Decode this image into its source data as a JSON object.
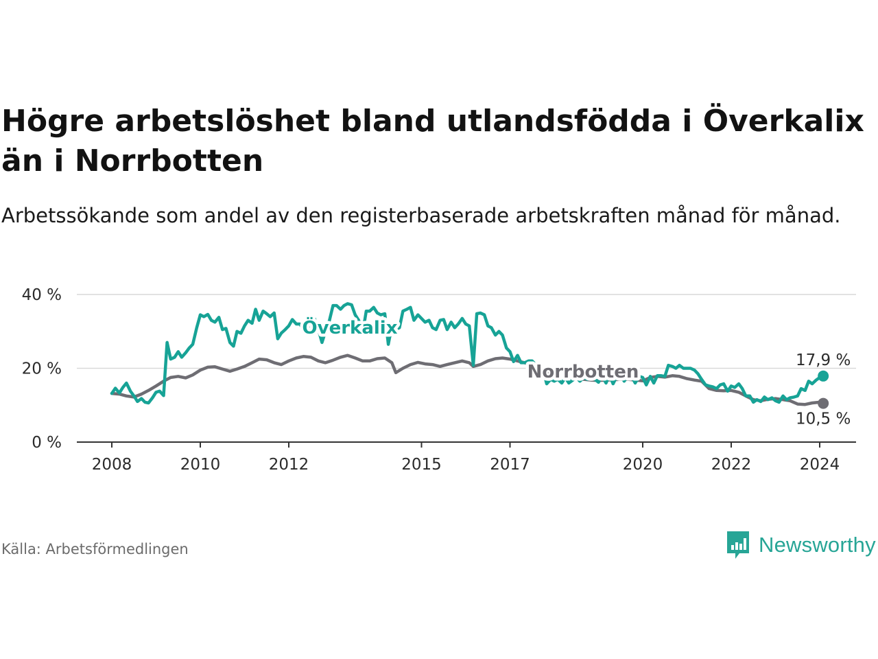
{
  "title": "Högre arbetslöshet bland utlandsfödda i Överkalix än i Norrbotten",
  "subtitle": "Arbetssökande som andel av den registerbaserade arbetskraften månad för månad.",
  "source": "Källa: Arbetsförmedlingen",
  "brand": "Newsworthy",
  "colors": {
    "overkalix": "#17a396",
    "norrbotten": "#6e6d73",
    "grid": "#d9d9d9",
    "axis": "#333333",
    "brand": "#27a596"
  },
  "chart_data": {
    "type": "line",
    "title": "Högre arbetslöshet bland utlandsfödda i Överkalix än i Norrbotten",
    "xlabel": "",
    "ylabel": "",
    "xlim": [
      2008,
      2024.2
    ],
    "ylim": [
      0,
      40
    ],
    "y_ticks": [
      0,
      20,
      40
    ],
    "y_tick_labels": [
      "0 %",
      "20 %",
      "40 %"
    ],
    "x_ticks": [
      2008,
      2010,
      2012,
      2015,
      2017,
      2020,
      2022,
      2024
    ],
    "x_tick_labels": [
      "2008",
      "2010",
      "2012",
      "2015",
      "2017",
      "2020",
      "2022",
      "2024"
    ],
    "series": [
      {
        "name": "Överkalix",
        "label": "Överkalix",
        "end_label": "17,9 %",
        "points": [
          [
            2008.0,
            13.2
          ],
          [
            2008.08,
            14.6
          ],
          [
            2008.17,
            13.3
          ],
          [
            2008.25,
            14.8
          ],
          [
            2008.33,
            16.0
          ],
          [
            2008.42,
            13.8
          ],
          [
            2008.5,
            12.5
          ],
          [
            2008.58,
            11.0
          ],
          [
            2008.67,
            11.8
          ],
          [
            2008.75,
            10.8
          ],
          [
            2008.83,
            10.6
          ],
          [
            2008.92,
            12.0
          ],
          [
            2009.0,
            13.5
          ],
          [
            2009.08,
            13.8
          ],
          [
            2009.17,
            12.6
          ],
          [
            2009.25,
            27.0
          ],
          [
            2009.33,
            22.5
          ],
          [
            2009.42,
            23.0
          ],
          [
            2009.5,
            24.5
          ],
          [
            2009.58,
            23.0
          ],
          [
            2009.67,
            24.2
          ],
          [
            2009.75,
            25.5
          ],
          [
            2009.83,
            26.5
          ],
          [
            2009.92,
            31.0
          ],
          [
            2010.0,
            34.5
          ],
          [
            2010.08,
            34.0
          ],
          [
            2010.17,
            34.6
          ],
          [
            2010.25,
            33.0
          ],
          [
            2010.33,
            32.5
          ],
          [
            2010.42,
            33.8
          ],
          [
            2010.5,
            30.5
          ],
          [
            2010.58,
            30.8
          ],
          [
            2010.67,
            27.0
          ],
          [
            2010.75,
            26.0
          ],
          [
            2010.83,
            30.0
          ],
          [
            2010.92,
            29.5
          ],
          [
            2011.0,
            31.5
          ],
          [
            2011.08,
            33.0
          ],
          [
            2011.17,
            32.2
          ],
          [
            2011.25,
            36.0
          ],
          [
            2011.33,
            33.0
          ],
          [
            2011.42,
            35.5
          ],
          [
            2011.5,
            34.8
          ],
          [
            2011.58,
            34.0
          ],
          [
            2011.67,
            35.0
          ],
          [
            2011.75,
            28.0
          ],
          [
            2011.83,
            29.5
          ],
          [
            2011.92,
            30.5
          ],
          [
            2012.0,
            31.5
          ],
          [
            2012.08,
            33.2
          ],
          [
            2012.17,
            32.0
          ],
          [
            2012.25,
            32.0
          ],
          [
            2012.33,
            30.5
          ],
          [
            2012.42,
            30.8
          ],
          [
            2012.5,
            31.8
          ],
          [
            2012.58,
            33.5
          ],
          [
            2012.67,
            30.5
          ],
          [
            2012.75,
            27.0
          ],
          [
            2012.83,
            30.0
          ],
          [
            2012.92,
            33.0
          ],
          [
            2013.0,
            37.0
          ],
          [
            2013.08,
            37.0
          ],
          [
            2013.17,
            36.0
          ],
          [
            2013.25,
            37.0
          ],
          [
            2013.33,
            37.5
          ],
          [
            2013.42,
            37.2
          ],
          [
            2013.5,
            34.5
          ],
          [
            2013.58,
            33.0
          ],
          [
            2013.67,
            29.5
          ],
          [
            2013.75,
            35.5
          ],
          [
            2013.83,
            35.5
          ],
          [
            2013.92,
            36.5
          ],
          [
            2014.0,
            35.0
          ],
          [
            2014.08,
            34.5
          ],
          [
            2014.17,
            34.8
          ],
          [
            2014.25,
            26.5
          ],
          [
            2014.33,
            31.5
          ],
          [
            2014.42,
            30.5
          ],
          [
            2014.5,
            31.0
          ],
          [
            2014.58,
            35.5
          ],
          [
            2014.67,
            36.0
          ],
          [
            2014.75,
            36.5
          ],
          [
            2014.83,
            33.0
          ],
          [
            2014.92,
            34.5
          ],
          [
            2015.0,
            33.5
          ],
          [
            2015.08,
            32.5
          ],
          [
            2015.17,
            33.0
          ],
          [
            2015.25,
            31.0
          ],
          [
            2015.33,
            30.5
          ],
          [
            2015.42,
            33.0
          ],
          [
            2015.5,
            33.2
          ],
          [
            2015.58,
            30.5
          ],
          [
            2015.67,
            32.5
          ],
          [
            2015.75,
            31.0
          ],
          [
            2015.83,
            32.0
          ],
          [
            2015.92,
            33.5
          ],
          [
            2016.0,
            32.0
          ],
          [
            2016.08,
            31.5
          ],
          [
            2016.17,
            20.8
          ],
          [
            2016.25,
            34.8
          ],
          [
            2016.33,
            35.0
          ],
          [
            2016.42,
            34.5
          ],
          [
            2016.5,
            31.5
          ],
          [
            2016.58,
            31.0
          ],
          [
            2016.67,
            29.0
          ],
          [
            2016.75,
            30.0
          ],
          [
            2016.83,
            29.0
          ],
          [
            2016.92,
            25.5
          ],
          [
            2017.0,
            24.5
          ],
          [
            2017.08,
            21.8
          ],
          [
            2017.17,
            23.5
          ],
          [
            2017.25,
            21.5
          ],
          [
            2017.33,
            21.5
          ],
          [
            2017.42,
            22.0
          ],
          [
            2017.5,
            22.0
          ],
          [
            2017.58,
            21.0
          ],
          [
            2017.67,
            20.5
          ],
          [
            2017.75,
            19.5
          ],
          [
            2017.83,
            15.8
          ],
          [
            2017.92,
            17.0
          ],
          [
            2018.0,
            16.5
          ],
          [
            2018.08,
            17.0
          ],
          [
            2018.17,
            16.0
          ],
          [
            2018.25,
            17.5
          ],
          [
            2018.33,
            16.0
          ],
          [
            2018.42,
            16.8
          ],
          [
            2018.5,
            17.5
          ],
          [
            2018.58,
            16.5
          ],
          [
            2018.67,
            17.5
          ],
          [
            2018.75,
            17.0
          ],
          [
            2018.83,
            18.0
          ],
          [
            2018.92,
            17.0
          ],
          [
            2019.0,
            16.2
          ],
          [
            2019.08,
            18.0
          ],
          [
            2019.17,
            16.0
          ],
          [
            2019.25,
            18.2
          ],
          [
            2019.33,
            15.8
          ],
          [
            2019.42,
            18.0
          ],
          [
            2019.5,
            18.2
          ],
          [
            2019.58,
            16.5
          ],
          [
            2019.67,
            18.0
          ],
          [
            2019.75,
            17.8
          ],
          [
            2019.83,
            16.0
          ],
          [
            2019.92,
            17.8
          ],
          [
            2020.0,
            17.5
          ],
          [
            2020.08,
            15.5
          ],
          [
            2020.17,
            17.8
          ],
          [
            2020.25,
            16.0
          ],
          [
            2020.33,
            18.0
          ],
          [
            2020.42,
            18.0
          ],
          [
            2020.5,
            17.8
          ],
          [
            2020.58,
            20.8
          ],
          [
            2020.67,
            20.5
          ],
          [
            2020.75,
            20.0
          ],
          [
            2020.83,
            20.8
          ],
          [
            2020.92,
            20.0
          ],
          [
            2021.0,
            20.0
          ],
          [
            2021.08,
            20.0
          ],
          [
            2021.17,
            19.5
          ],
          [
            2021.25,
            18.5
          ],
          [
            2021.33,
            17.0
          ],
          [
            2021.42,
            15.5
          ],
          [
            2021.5,
            15.2
          ],
          [
            2021.58,
            15.0
          ],
          [
            2021.67,
            14.5
          ],
          [
            2021.75,
            15.5
          ],
          [
            2021.83,
            15.8
          ],
          [
            2021.92,
            13.8
          ],
          [
            2022.0,
            15.2
          ],
          [
            2022.08,
            14.8
          ],
          [
            2022.17,
            15.8
          ],
          [
            2022.25,
            14.5
          ],
          [
            2022.33,
            12.5
          ],
          [
            2022.42,
            12.5
          ],
          [
            2022.5,
            10.8
          ],
          [
            2022.58,
            11.5
          ],
          [
            2022.67,
            11.0
          ],
          [
            2022.75,
            12.2
          ],
          [
            2022.83,
            11.5
          ],
          [
            2022.92,
            12.0
          ],
          [
            2023.0,
            11.2
          ],
          [
            2023.08,
            10.8
          ],
          [
            2023.17,
            12.5
          ],
          [
            2023.25,
            11.5
          ],
          [
            2023.33,
            12.0
          ],
          [
            2023.42,
            12.2
          ],
          [
            2023.5,
            12.5
          ],
          [
            2023.58,
            14.5
          ],
          [
            2023.67,
            14.0
          ],
          [
            2023.75,
            16.5
          ],
          [
            2023.83,
            15.8
          ],
          [
            2023.92,
            16.8
          ],
          [
            2024.0,
            17.5
          ],
          [
            2024.08,
            17.9
          ]
        ]
      },
      {
        "name": "Norrbotten",
        "label": "Norrbotten",
        "end_label": "10,5 %",
        "points": [
          [
            2008.0,
            13.2
          ],
          [
            2008.17,
            13.0
          ],
          [
            2008.33,
            12.5
          ],
          [
            2008.5,
            12.2
          ],
          [
            2008.67,
            13.0
          ],
          [
            2008.83,
            14.0
          ],
          [
            2009.0,
            15.2
          ],
          [
            2009.17,
            16.5
          ],
          [
            2009.33,
            17.5
          ],
          [
            2009.5,
            17.8
          ],
          [
            2009.67,
            17.4
          ],
          [
            2009.83,
            18.2
          ],
          [
            2010.0,
            19.5
          ],
          [
            2010.17,
            20.3
          ],
          [
            2010.33,
            20.4
          ],
          [
            2010.5,
            19.8
          ],
          [
            2010.67,
            19.2
          ],
          [
            2010.83,
            19.8
          ],
          [
            2011.0,
            20.5
          ],
          [
            2011.17,
            21.5
          ],
          [
            2011.33,
            22.5
          ],
          [
            2011.5,
            22.3
          ],
          [
            2011.67,
            21.5
          ],
          [
            2011.83,
            21.0
          ],
          [
            2012.0,
            22.0
          ],
          [
            2012.17,
            22.8
          ],
          [
            2012.33,
            23.2
          ],
          [
            2012.5,
            23.0
          ],
          [
            2012.67,
            22.0
          ],
          [
            2012.83,
            21.5
          ],
          [
            2013.0,
            22.2
          ],
          [
            2013.17,
            23.0
          ],
          [
            2013.33,
            23.5
          ],
          [
            2013.5,
            22.8
          ],
          [
            2013.67,
            22.0
          ],
          [
            2013.83,
            22.0
          ],
          [
            2014.0,
            22.6
          ],
          [
            2014.17,
            22.8
          ],
          [
            2014.33,
            21.5
          ],
          [
            2014.42,
            18.8
          ],
          [
            2014.58,
            20.0
          ],
          [
            2014.75,
            21.0
          ],
          [
            2014.92,
            21.6
          ],
          [
            2015.08,
            21.2
          ],
          [
            2015.25,
            21.0
          ],
          [
            2015.42,
            20.5
          ],
          [
            2015.58,
            21.0
          ],
          [
            2015.75,
            21.5
          ],
          [
            2015.92,
            22.0
          ],
          [
            2016.08,
            21.5
          ],
          [
            2016.17,
            20.5
          ],
          [
            2016.33,
            21.0
          ],
          [
            2016.5,
            22.0
          ],
          [
            2016.67,
            22.6
          ],
          [
            2016.83,
            22.8
          ],
          [
            2017.0,
            22.5
          ],
          [
            2017.17,
            22.0
          ],
          [
            2017.33,
            21.5
          ],
          [
            2017.5,
            20.8
          ],
          [
            2017.67,
            20.0
          ],
          [
            2017.83,
            19.0
          ],
          [
            2018.0,
            18.2
          ],
          [
            2018.17,
            17.8
          ],
          [
            2018.33,
            17.5
          ],
          [
            2018.5,
            17.2
          ],
          [
            2018.67,
            17.0
          ],
          [
            2018.83,
            16.8
          ],
          [
            2019.0,
            16.7
          ],
          [
            2019.17,
            16.8
          ],
          [
            2019.33,
            16.9
          ],
          [
            2019.5,
            17.0
          ],
          [
            2019.67,
            17.0
          ],
          [
            2019.83,
            16.8
          ],
          [
            2020.0,
            16.6
          ],
          [
            2020.17,
            17.5
          ],
          [
            2020.33,
            17.8
          ],
          [
            2020.5,
            17.6
          ],
          [
            2020.67,
            18.0
          ],
          [
            2020.83,
            17.8
          ],
          [
            2021.0,
            17.2
          ],
          [
            2021.17,
            16.8
          ],
          [
            2021.33,
            16.5
          ],
          [
            2021.5,
            14.5
          ],
          [
            2021.67,
            14.0
          ],
          [
            2021.83,
            13.9
          ],
          [
            2022.0,
            14.0
          ],
          [
            2022.17,
            13.5
          ],
          [
            2022.33,
            12.5
          ],
          [
            2022.5,
            11.5
          ],
          [
            2022.67,
            11.2
          ],
          [
            2022.83,
            11.6
          ],
          [
            2023.0,
            11.8
          ],
          [
            2023.17,
            11.5
          ],
          [
            2023.33,
            11.2
          ],
          [
            2023.5,
            10.3
          ],
          [
            2023.67,
            10.2
          ],
          [
            2023.83,
            10.6
          ],
          [
            2024.0,
            10.8
          ],
          [
            2024.08,
            10.5
          ]
        ]
      }
    ]
  }
}
